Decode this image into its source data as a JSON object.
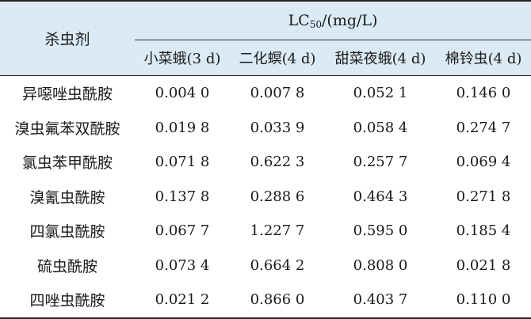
{
  "table": {
    "agent_header": "杀虫剂",
    "lc_header_main": "LC",
    "lc_header_sub": "50",
    "lc_header_unit": "/(mg/L)",
    "columns": [
      "小菜蛾(3 d)",
      "二化螟(4 d)",
      "甜菜夜蛾(4 d)",
      "棉铃虫(4 d)"
    ],
    "rows": [
      {
        "name": "异噁唑虫酰胺",
        "values": [
          "0.004 0",
          "0.007 8",
          "0.052 1",
          "0.146 0"
        ]
      },
      {
        "name": "溴虫氟苯双酰胺",
        "values": [
          "0.019 8",
          "0.033 9",
          "0.058 4",
          "0.274 7"
        ]
      },
      {
        "name": "氯虫苯甲酰胺",
        "values": [
          "0.071 8",
          "0.622 3",
          "0.257 7",
          "0.069 4"
        ]
      },
      {
        "name": "溴氰虫酰胺",
        "values": [
          "0.137 8",
          "0.288 6",
          "0.464 3",
          "0.271 8"
        ]
      },
      {
        "name": "四氯虫酰胺",
        "values": [
          "0.067 7",
          "1.227 7",
          "0.595 0",
          "0.185 4"
        ]
      },
      {
        "name": "硫虫酰胺",
        "values": [
          "0.073 4",
          "0.664 2",
          "0.808 0",
          "0.021 8"
        ]
      },
      {
        "name": "四唑虫酰胺",
        "values": [
          "0.021 2",
          "0.866 0",
          "0.403 7",
          "0.110 0"
        ]
      }
    ]
  }
}
